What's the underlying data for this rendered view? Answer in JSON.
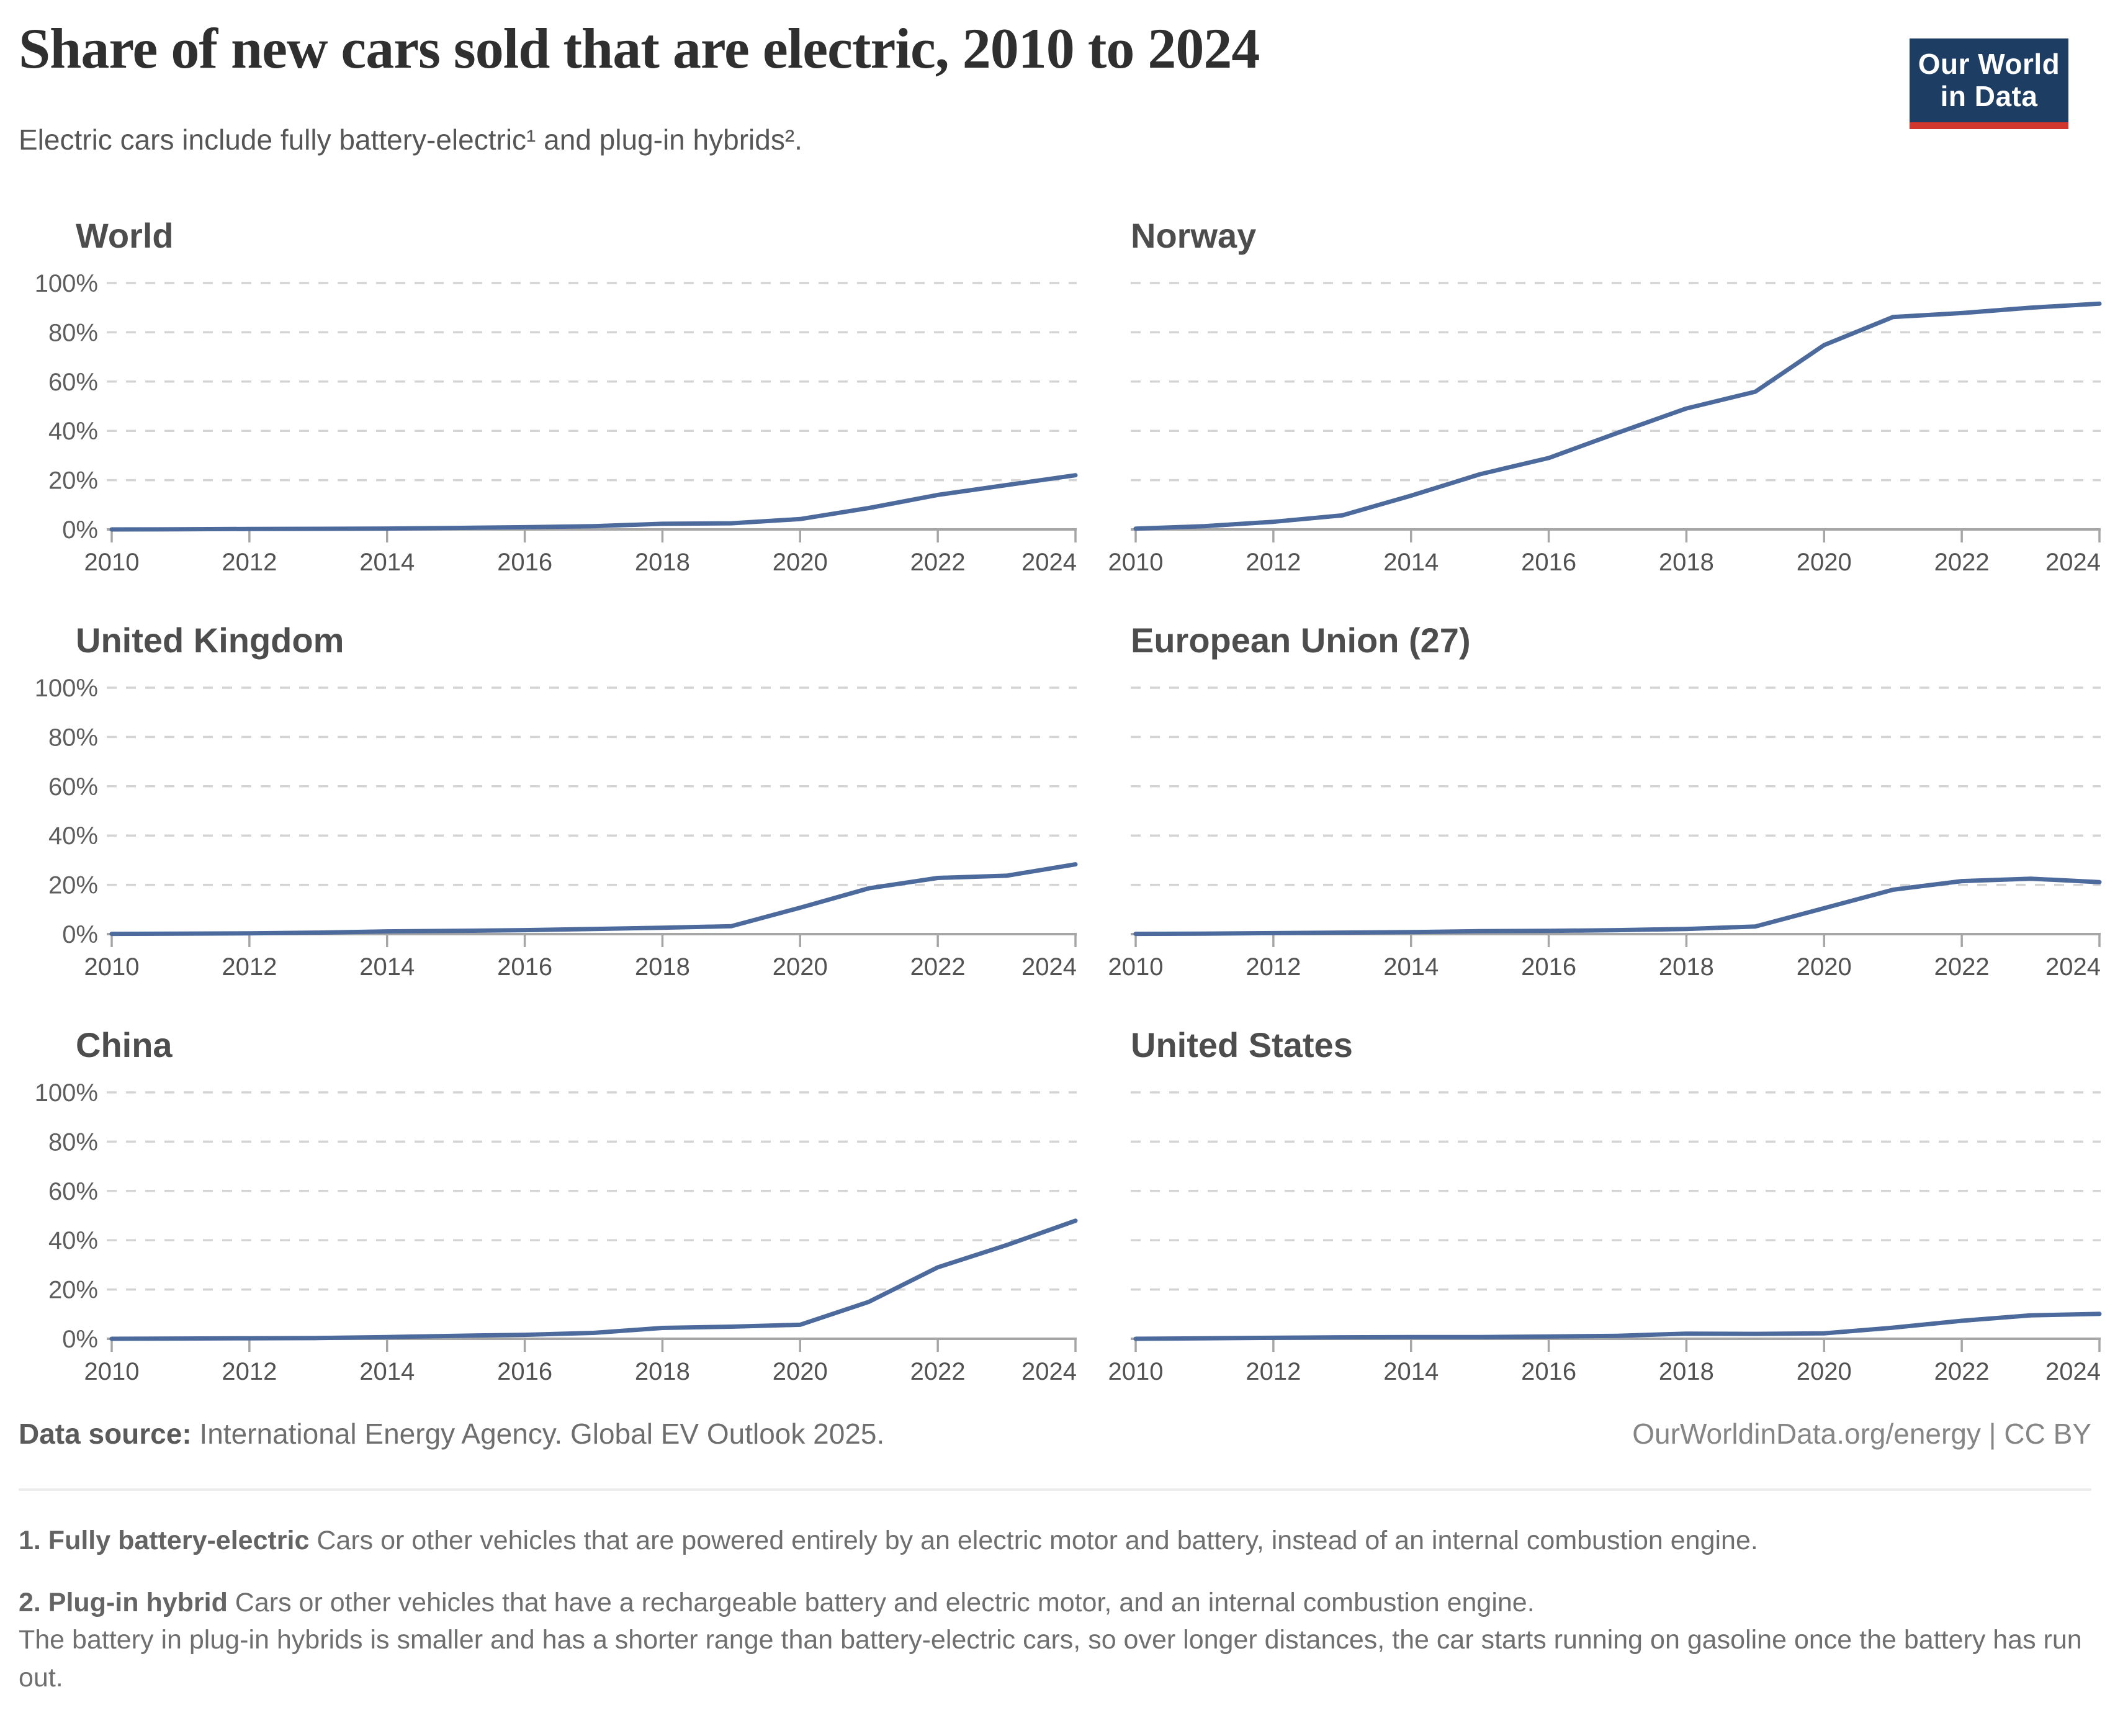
{
  "header": {
    "title": "Share of new cars sold that are electric, 2010 to 2024",
    "subtitle": "Electric cars include fully battery-electric¹ and plug-in hybrids².",
    "logo_line1": "Our World",
    "logo_line2": "in Data"
  },
  "footer": {
    "source_label": "Data source:",
    "source_value": " International Energy Agency. Global EV Outlook 2025.",
    "rights": "OurWorldinData.org/energy | CC BY"
  },
  "notes": [
    {
      "lead": "1. Fully battery-electric",
      "text": " Cars or other vehicles that are powered entirely by an electric motor and battery, instead of an internal combustion engine."
    },
    {
      "lead": "2. Plug-in hybrid",
      "text": " Cars or other vehicles that have a rechargeable battery and electric motor, and an internal combustion engine.",
      "text2": "The battery in plug-in hybrids is smaller and has a shorter range than battery-electric cars, so over longer distances, the car starts running on gasoline once the battery has run out."
    }
  ],
  "chart_data": {
    "type": "line",
    "x": [
      2010,
      2011,
      2012,
      2013,
      2014,
      2015,
      2016,
      2017,
      2018,
      2019,
      2020,
      2021,
      2022,
      2023,
      2024
    ],
    "x_tick_labels": [
      "2010",
      "2012",
      "2014",
      "2016",
      "2018",
      "2020",
      "2022",
      "2024"
    ],
    "y_tick_labels": [
      "0%",
      "20%",
      "40%",
      "60%",
      "80%",
      "100%"
    ],
    "ylim": [
      0,
      100
    ],
    "grid": "dashed-horizontal",
    "legend": "none",
    "line_color": "#4c6a9c",
    "panels": [
      {
        "title": "World",
        "values": [
          0.01,
          0.05,
          0.2,
          0.25,
          0.35,
          0.6,
          0.9,
          1.3,
          2.3,
          2.5,
          4.2,
          8.7,
          14.0,
          18.0,
          22.0
        ]
      },
      {
        "title": "Norway",
        "values": [
          0.3,
          1.3,
          3.1,
          5.7,
          13.7,
          22.4,
          29.0,
          39.2,
          49.1,
          55.9,
          74.8,
          86.2,
          87.8,
          90.0,
          91.6
        ]
      },
      {
        "title": "United Kingdom",
        "values": [
          0.1,
          0.2,
          0.3,
          0.6,
          1.1,
          1.3,
          1.6,
          2.1,
          2.6,
          3.2,
          10.7,
          18.6,
          22.8,
          23.7,
          28.3
        ]
      },
      {
        "title": "European Union (27)",
        "values": [
          0.1,
          0.2,
          0.4,
          0.6,
          0.8,
          1.2,
          1.3,
          1.6,
          2.1,
          3.1,
          10.5,
          18.0,
          21.5,
          22.5,
          21.1
        ]
      },
      {
        "title": "China",
        "values": [
          0.01,
          0.1,
          0.2,
          0.3,
          0.7,
          1.2,
          1.6,
          2.4,
          4.4,
          4.9,
          5.7,
          15.0,
          29.0,
          38.0,
          47.9
        ]
      },
      {
        "title": "United States",
        "values": [
          0.01,
          0.2,
          0.4,
          0.6,
          0.7,
          0.7,
          0.9,
          1.2,
          2.1,
          2.0,
          2.2,
          4.5,
          7.3,
          9.5,
          10.1
        ]
      }
    ],
    "colors": {
      "line": "#4c6a9c",
      "gridline": "#d4d4d4",
      "axis_baseline": "#a6a6a6",
      "x_tick_label": "#525252",
      "y_tick_label": "#5e5e5e",
      "logo_navy": "#1d3d63",
      "logo_red": "#d2372e"
    }
  }
}
